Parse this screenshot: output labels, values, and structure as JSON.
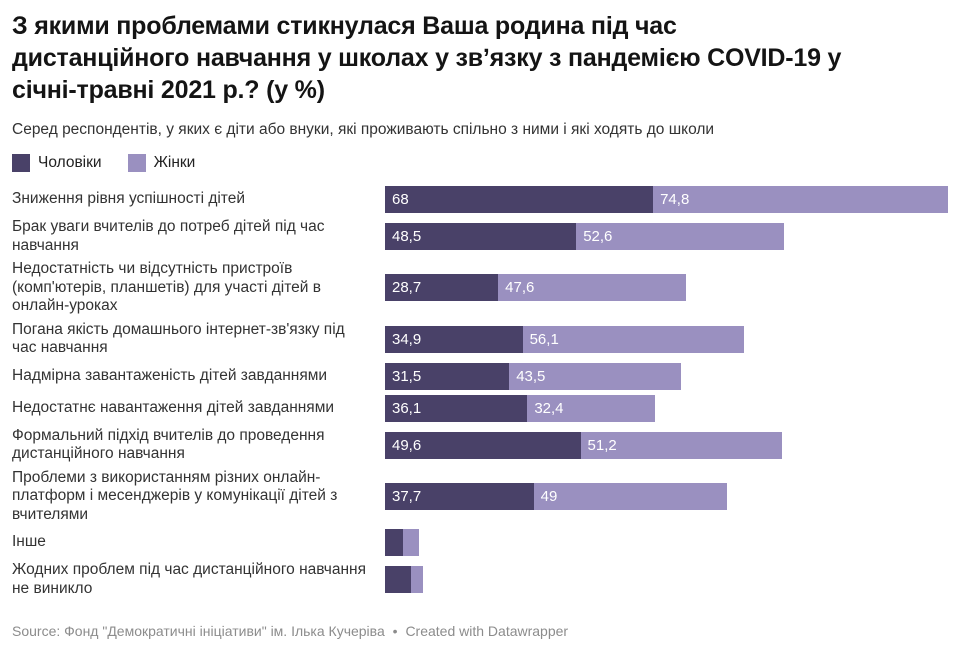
{
  "header": {
    "title_lines": [
      "З якими проблемами стикнулася Ваша родина під час",
      "дистанційного навчання у школах у звʼязку з пандемією COVID-19 у",
      "січні-травні 2021 р.? (у %)"
    ],
    "subtitle": "Серед респондентів, у яких є діти або внуки, які проживають спільно з ними і які ходять до школи"
  },
  "legend": [
    {
      "label": "Чоловіки",
      "color": "#494168"
    },
    {
      "label": "Жінки",
      "color": "#9a90c0"
    }
  ],
  "chart_data": {
    "type": "bar",
    "orientation": "horizontal",
    "stacked": true,
    "unit": "%",
    "x_range": [
      0,
      142.8
    ],
    "grid": false,
    "legend_position": "top-left",
    "categories": [
      "Зниження рівня успішності дітей",
      "Брак уваги вчителів до потреб дітей під час навчання",
      "Недостатність чи відсутність пристроїв (комп'ютерів, планшетів) для участі дітей в онлайн-уроках",
      "Погана якість домашнього інтернет-зв'язку під час навчання",
      "Надмірна завантаженість дітей завданнями",
      "Недостатнє навантаження дітей завданнями",
      "Формальний підхід вчителів до проведення дистанційного навчання",
      "Проблеми з використанням різних онлайн-платформ і месенджерів у комунікації дітей з вчителями",
      "Інше",
      "Жодних проблем під час дистанційного навчання не виникло"
    ],
    "series": [
      {
        "name": "Чоловіки",
        "key": "men",
        "color": "#494168",
        "values": [
          68,
          48.5,
          28.7,
          34.9,
          31.5,
          36.1,
          49.6,
          37.7,
          4.6,
          6.6
        ],
        "labels": [
          "68",
          "48,5",
          "28,7",
          "34,9",
          "31,5",
          "36,1",
          "49,6",
          "37,7",
          "",
          ""
        ]
      },
      {
        "name": "Жінки",
        "key": "women",
        "color": "#9a90c0",
        "values": [
          74.8,
          52.6,
          47.6,
          56.1,
          43.5,
          32.4,
          51.2,
          49,
          4.1,
          3.1
        ],
        "labels": [
          "74,8",
          "52,6",
          "47,6",
          "56,1",
          "43,5",
          "32,4",
          "51,2",
          "49",
          "",
          ""
        ]
      }
    ]
  },
  "footer": {
    "source": "Source: Фонд \"Демократичні ініціативи\" ім. Ілька Кучеріва",
    "separator": "•",
    "credit": "Created with Datawrapper"
  }
}
